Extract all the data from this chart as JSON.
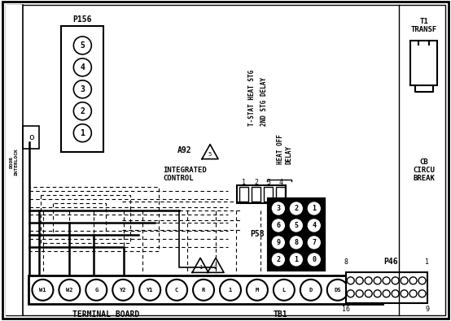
{
  "bg_color": "#ffffff",
  "lc": "#000000",
  "p156_label": "P156",
  "p156_pins": [
    "5",
    "4",
    "3",
    "2",
    "1"
  ],
  "a92_label": "A92",
  "a92_sub": "INTEGRATED\nCONTROL",
  "relay_col_labels": [
    "T-STAT HEAT STG",
    "2ND STG DELAY",
    "HEAT OFF\nDELAY"
  ],
  "relay_numbers": [
    "1",
    "2",
    "3",
    "4"
  ],
  "p58_label": "P58",
  "p58_grid": [
    [
      "3",
      "2",
      "1"
    ],
    [
      "6",
      "5",
      "4"
    ],
    [
      "9",
      "8",
      "7"
    ],
    [
      "2",
      "1",
      "0"
    ]
  ],
  "terminal_labels": [
    "W1",
    "W2",
    "G",
    "Y2",
    "Y1",
    "C",
    "R",
    "1",
    "M",
    "L",
    "D",
    "DS"
  ],
  "terminal_board_label": "TERMINAL BOARD",
  "tb1_label": "TB1",
  "p46_label": "P46",
  "t1_label": "T1\nTRANSF",
  "cb_label": "CB\nCIRCU\nBREAK"
}
